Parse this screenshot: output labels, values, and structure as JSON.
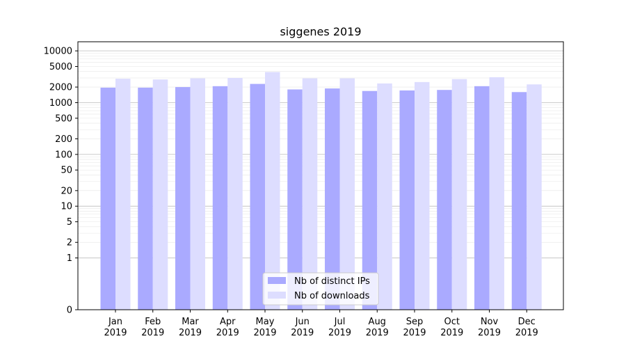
{
  "chart_data": {
    "type": "bar",
    "title": "siggenes 2019",
    "xlabel": "",
    "ylabel": "",
    "yscale": "symlog",
    "ylim": [
      0,
      15000
    ],
    "grid": true,
    "legend_position": "bottom-center",
    "categories": [
      {
        "month": "Jan",
        "year": "2019"
      },
      {
        "month": "Feb",
        "year": "2019"
      },
      {
        "month": "Mar",
        "year": "2019"
      },
      {
        "month": "Apr",
        "year": "2019"
      },
      {
        "month": "May",
        "year": "2019"
      },
      {
        "month": "Jun",
        "year": "2019"
      },
      {
        "month": "Jul",
        "year": "2019"
      },
      {
        "month": "Aug",
        "year": "2019"
      },
      {
        "month": "Sep",
        "year": "2019"
      },
      {
        "month": "Oct",
        "year": "2019"
      },
      {
        "month": "Nov",
        "year": "2019"
      },
      {
        "month": "Dec",
        "year": "2019"
      }
    ],
    "y_ticks": [
      {
        "value": 0,
        "label": "0"
      },
      {
        "value": 1,
        "label": "1"
      },
      {
        "value": 2,
        "label": "2"
      },
      {
        "value": 5,
        "label": "5"
      },
      {
        "value": 10,
        "label": "10"
      },
      {
        "value": 20,
        "label": "20"
      },
      {
        "value": 50,
        "label": "50"
      },
      {
        "value": 100,
        "label": "100"
      },
      {
        "value": 200,
        "label": "200"
      },
      {
        "value": 500,
        "label": "500"
      },
      {
        "value": 1000,
        "label": "1000"
      },
      {
        "value": 2000,
        "label": "2000"
      },
      {
        "value": 5000,
        "label": "5000"
      },
      {
        "value": 10000,
        "label": "10000"
      }
    ],
    "series": [
      {
        "name": "Nb of distinct IPs",
        "color": "#aaaaff",
        "values": [
          1950,
          1950,
          2000,
          2080,
          2300,
          1800,
          1880,
          1680,
          1720,
          1760,
          2080,
          1600
        ]
      },
      {
        "name": "Nb of downloads",
        "color": "#ddddff",
        "values": [
          2900,
          2800,
          2950,
          3000,
          3900,
          2950,
          2950,
          2350,
          2500,
          2850,
          3100,
          2250
        ]
      }
    ]
  }
}
